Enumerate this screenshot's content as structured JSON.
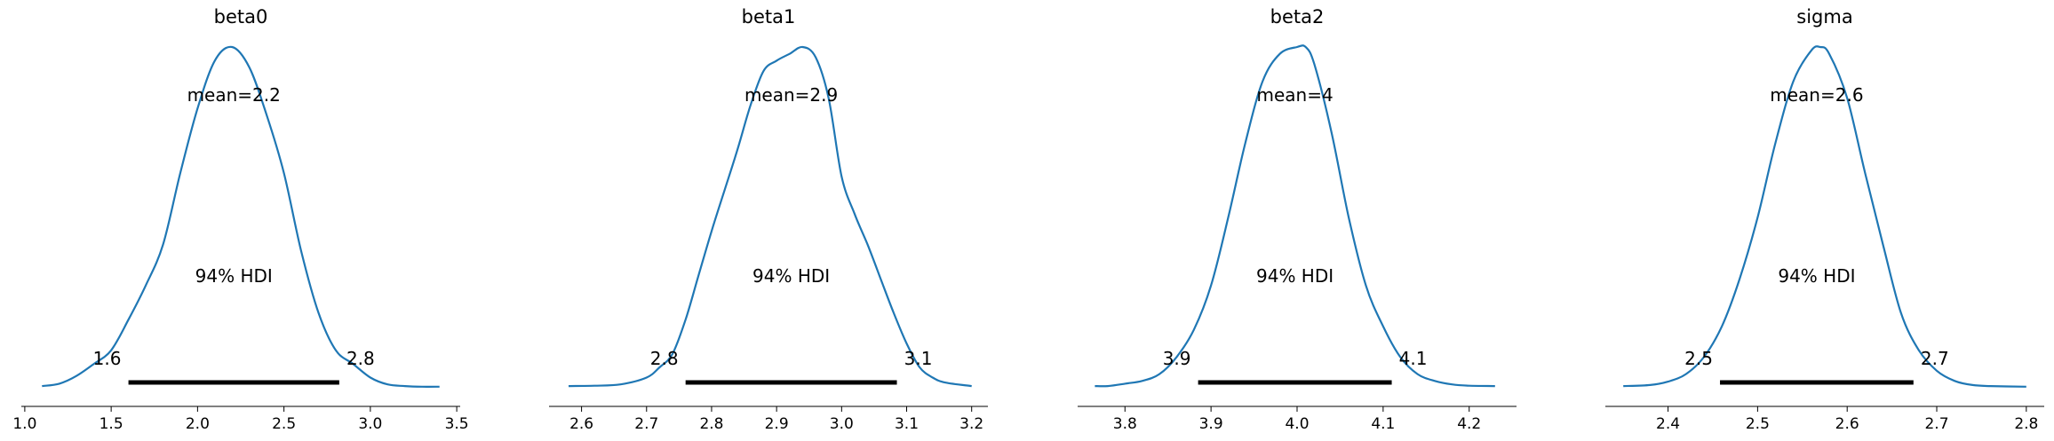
{
  "chart_data": [
    {
      "type": "line",
      "title": "beta0",
      "mean_label": "mean=2.2",
      "hdi_label": "94% HDI",
      "hdi": [
        1.6,
        2.82
      ],
      "hdi_low_label": "1.6",
      "hdi_high_label": "2.8",
      "xlim": [
        0.98,
        3.52
      ],
      "xticks": [
        1.0,
        1.5,
        2.0,
        2.5,
        3.0,
        3.5
      ],
      "xtick_labels": [
        "1.0",
        "1.5",
        "2.0",
        "2.5",
        "3.0",
        "3.5"
      ],
      "line_color": "#1f77b4",
      "density": {
        "x": [
          1.1,
          1.2,
          1.3,
          1.4,
          1.5,
          1.6,
          1.7,
          1.8,
          1.9,
          2.0,
          2.1,
          2.2,
          2.3,
          2.4,
          2.5,
          2.6,
          2.7,
          2.8,
          2.9,
          3.0,
          3.1,
          3.2,
          3.3,
          3.4
        ],
        "y": [
          0.005,
          0.012,
          0.035,
          0.07,
          0.11,
          0.2,
          0.3,
          0.42,
          0.63,
          0.82,
          0.96,
          1.0,
          0.94,
          0.8,
          0.63,
          0.4,
          0.22,
          0.11,
          0.07,
          0.03,
          0.01,
          0.005,
          0.003,
          0.003
        ]
      }
    },
    {
      "type": "line",
      "title": "beta1",
      "mean_label": "mean=2.9",
      "hdi_label": "94% HDI",
      "hdi": [
        2.76,
        3.085
      ],
      "hdi_low_label": "2.8",
      "hdi_high_label": "3.1",
      "xlim": [
        2.55,
        3.225
      ],
      "xticks": [
        2.6,
        2.7,
        2.8,
        2.9,
        3.0,
        3.1,
        3.2
      ],
      "xtick_labels": [
        "2.6",
        "2.7",
        "2.8",
        "2.9",
        "3.0",
        "3.1",
        "3.2"
      ],
      "line_color": "#1f77b4",
      "density": {
        "x": [
          2.58,
          2.62,
          2.66,
          2.7,
          2.72,
          2.74,
          2.76,
          2.78,
          2.8,
          2.82,
          2.84,
          2.86,
          2.88,
          2.9,
          2.92,
          2.94,
          2.96,
          2.98,
          3.0,
          3.02,
          3.04,
          3.06,
          3.08,
          3.1,
          3.12,
          3.14,
          3.16,
          3.2
        ],
        "y": [
          0.005,
          0.006,
          0.01,
          0.03,
          0.06,
          0.1,
          0.2,
          0.33,
          0.46,
          0.58,
          0.7,
          0.83,
          0.93,
          0.96,
          0.98,
          1.0,
          0.97,
          0.85,
          0.62,
          0.51,
          0.42,
          0.32,
          0.22,
          0.13,
          0.06,
          0.03,
          0.015,
          0.005
        ]
      }
    },
    {
      "type": "line",
      "title": "beta2",
      "mean_label": "mean=4",
      "hdi_label": "94% HDI",
      "hdi": [
        3.885,
        4.11
      ],
      "hdi_low_label": "3.9",
      "hdi_high_label": "4.1",
      "xlim": [
        3.745,
        4.255
      ],
      "xticks": [
        3.8,
        3.9,
        4.0,
        4.1,
        4.2
      ],
      "xtick_labels": [
        "3.8",
        "3.9",
        "4.0",
        "4.1",
        "4.2"
      ],
      "line_color": "#1f77b4",
      "density": {
        "x": [
          3.765,
          3.78,
          3.8,
          3.82,
          3.84,
          3.86,
          3.88,
          3.9,
          3.92,
          3.94,
          3.96,
          3.98,
          4.0,
          4.01,
          4.02,
          4.04,
          4.06,
          4.08,
          4.1,
          4.12,
          4.14,
          4.16,
          4.18,
          4.2,
          4.23
        ],
        "y": [
          0.005,
          0.005,
          0.012,
          0.02,
          0.04,
          0.09,
          0.17,
          0.3,
          0.5,
          0.72,
          0.9,
          0.98,
          1.0,
          1.0,
          0.95,
          0.75,
          0.5,
          0.3,
          0.18,
          0.09,
          0.04,
          0.02,
          0.01,
          0.006,
          0.005
        ]
      }
    },
    {
      "type": "line",
      "title": "sigma",
      "mean_label": "mean=2.6",
      "hdi_label": "94% HDI",
      "hdi": [
        2.458,
        2.674
      ],
      "hdi_low_label": "2.5",
      "hdi_high_label": "2.7",
      "xlim": [
        2.33,
        2.82
      ],
      "xticks": [
        2.4,
        2.5,
        2.6,
        2.7,
        2.8
      ],
      "xtick_labels": [
        "2.4",
        "2.5",
        "2.6",
        "2.7",
        "2.8"
      ],
      "line_color": "#1f77b4",
      "density": {
        "x": [
          2.35,
          2.38,
          2.4,
          2.42,
          2.44,
          2.46,
          2.48,
          2.5,
          2.52,
          2.54,
          2.56,
          2.57,
          2.58,
          2.6,
          2.62,
          2.64,
          2.66,
          2.68,
          2.7,
          2.72,
          2.74,
          2.76,
          2.8
        ],
        "y": [
          0.005,
          0.008,
          0.018,
          0.04,
          0.09,
          0.18,
          0.32,
          0.5,
          0.72,
          0.9,
          0.99,
          1.0,
          0.98,
          0.85,
          0.63,
          0.42,
          0.22,
          0.11,
          0.05,
          0.02,
          0.008,
          0.005,
          0.003
        ]
      }
    }
  ]
}
